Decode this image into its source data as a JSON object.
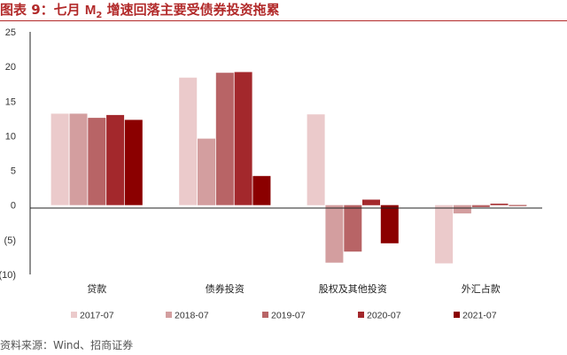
{
  "header": {
    "fig_label": "图表 9：",
    "title_prefix": "七月 ",
    "title_m": "M",
    "title_sub": "2",
    "title_suffix": " 增速回落主要受债券投资拖累"
  },
  "source": "资料来源：Wind、招商证券",
  "colors": [
    "#ebcacb",
    "#d39e9f",
    "#b86466",
    "#a3282c",
    "#8b0000"
  ],
  "chart_data": {
    "type": "bar",
    "categories": [
      "贷款",
      "债券投资",
      "股权及其他投资",
      "外汇占款"
    ],
    "series": [
      {
        "name": "2017-07",
        "values": [
          13.2,
          18.4,
          13.1,
          -8.4
        ]
      },
      {
        "name": "2018-07",
        "values": [
          13.2,
          9.6,
          -8.3,
          -1.2
        ]
      },
      {
        "name": "2019-07",
        "values": [
          12.6,
          19.1,
          -6.7,
          -0.3
        ]
      },
      {
        "name": "2020-07",
        "values": [
          13.0,
          19.2,
          0.8,
          0.2
        ]
      },
      {
        "name": "2021-07",
        "values": [
          12.3,
          4.2,
          -5.5,
          0.0
        ]
      }
    ],
    "ylim": [
      -10,
      25
    ],
    "yticks": [
      25,
      20,
      15,
      10,
      5,
      0,
      -5,
      -10
    ],
    "ytick_labels": [
      "25",
      "20",
      "15",
      "10",
      "5",
      "0",
      "(5)",
      "(10)"
    ],
    "grid": false,
    "legend_position": "bottom"
  }
}
